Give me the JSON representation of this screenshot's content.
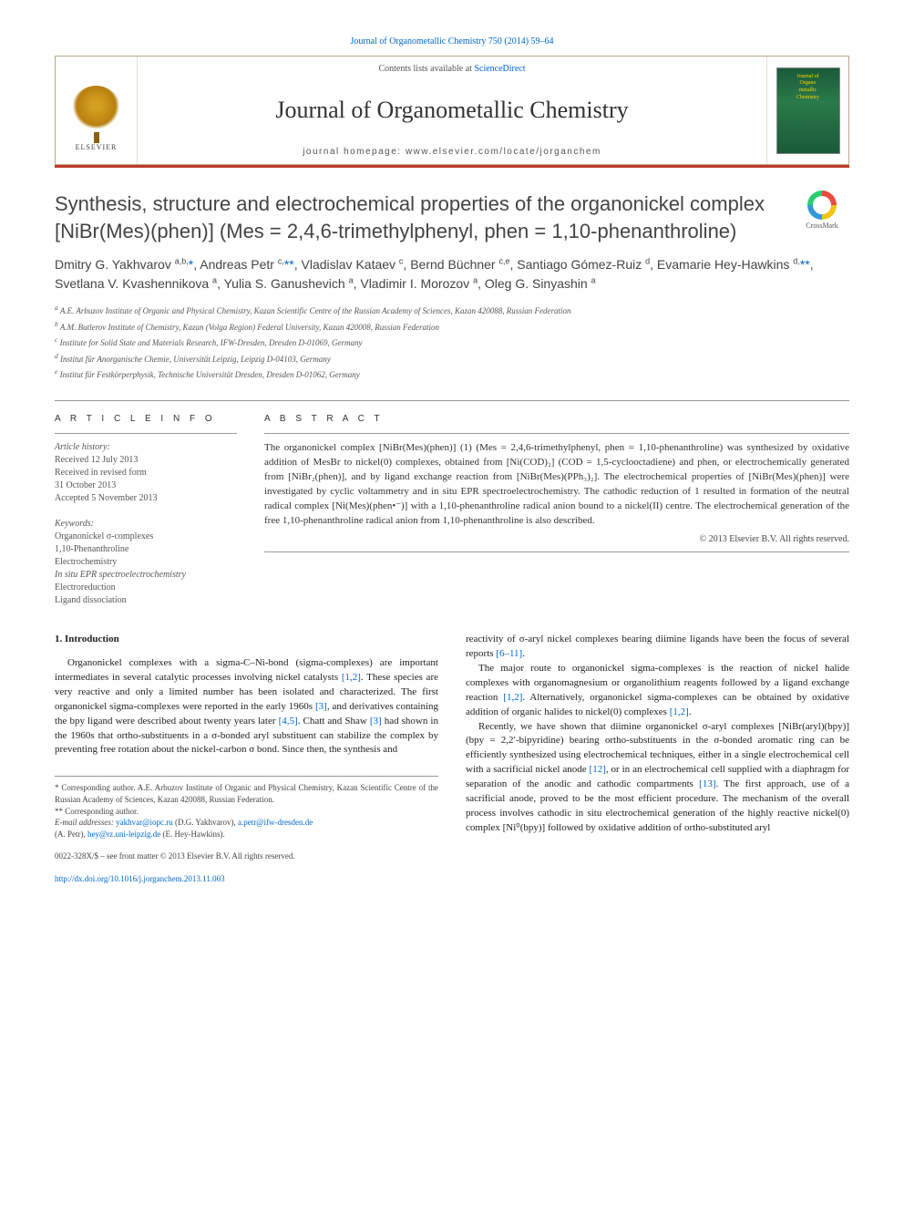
{
  "top_citation": "Journal of Organometallic Chemistry 750 (2014) 59–64",
  "header": {
    "contents_prefix": "Contents lists available at ",
    "contents_link": "ScienceDirect",
    "journal_title": "Journal of Organometallic Chemistry",
    "homepage_prefix": "journal homepage: ",
    "homepage_url": "www.elsevier.com/locate/jorganchem",
    "publisher_name": "ELSEVIER",
    "cover_line1": "Journal of",
    "cover_line2": "Organo",
    "cover_line3": "metallic",
    "cover_line4": "Chemistry"
  },
  "article": {
    "title": "Synthesis, structure and electrochemical properties of the organonickel complex [NiBr(Mes)(phen)] (Mes = 2,4,6-trimethylphenyl, phen = 1,10-phenanthroline)",
    "crossmark": "CrossMark",
    "authors_html": "Dmitry G. Yakhvarov <sup>a,b,</sup><span class='star'>*</span>, Andreas Petr <sup>c,</sup><span class='star'>**</span>, Vladislav Kataev <sup>c</sup>, Bernd Büchner <sup>c,e</sup>, Santiago Gómez-Ruiz <sup>d</sup>, Evamarie Hey-Hawkins <sup>d,</sup><span class='star'>**</span>, Svetlana V. Kvashennikova <sup>a</sup>, Yulia S. Ganushevich <sup>a</sup>, Vladimir I. Morozov <sup>a</sup>, Oleg G. Sinyashin <sup>a</sup>",
    "affiliations": [
      "a A.E. Arbuzov Institute of Organic and Physical Chemistry, Kazan Scientific Centre of the Russian Academy of Sciences, Kazan 420088, Russian Federation",
      "b A.M. Butlerov Institute of Chemistry, Kazan (Volga Region) Federal University, Kazan 420008, Russian Federation",
      "c Institute for Solid State and Materials Research, IFW-Dresden, Dresden D-01069, Germany",
      "d Institut für Anorganische Chemie, Universität Leipzig, Leipzig D-04103, Germany",
      "e Institut für Festkörperphysik, Technische Universität Dresden, Dresden D-01062, Germany"
    ]
  },
  "info": {
    "heading": "A R T I C L E   I N F O",
    "history_label": "Article history:",
    "history": [
      "Received 12 July 2013",
      "Received in revised form",
      "31 October 2013",
      "Accepted 5 November 2013"
    ],
    "keywords_label": "Keywords:",
    "keywords": [
      "Organonickel σ-complexes",
      "1,10-Phenanthroline",
      "Electrochemistry",
      "In situ EPR spectroelectrochemistry",
      "Electroreduction",
      "Ligand dissociation"
    ]
  },
  "abstract": {
    "heading": "A B S T R A C T",
    "text": "The organonickel complex [NiBr(Mes)(phen)] (1) (Mes = 2,4,6-trimethylphenyl, phen = 1,10-phenanthroline) was synthesized by oxidative addition of MesBr to nickel(0) complexes, obtained from [Ni(COD)₂] (COD = 1,5-cyclooctadiene) and phen, or electrochemically generated from [NiBr₂(phen)], and by ligand exchange reaction from [NiBr(Mes)(PPh₃)₂]. The electrochemical properties of [NiBr(Mes)(phen)] were investigated by cyclic voltammetry and in situ EPR spectroelectrochemistry. The cathodic reduction of 1 resulted in formation of the neutral radical complex [Ni(Mes)(phen•⁻)] with a 1,10-phenanthroline radical anion bound to a nickel(II) centre. The electrochemical generation of the free 1,10-phenanthroline radical anion from 1,10-phenanthroline is also described.",
    "copyright": "© 2013 Elsevier B.V. All rights reserved."
  },
  "body": {
    "intro_heading": "1. Introduction",
    "col1_p1": "Organonickel complexes with a sigma-C–Ni-bond (sigma-complexes) are important intermediates in several catalytic processes involving nickel catalysts [1,2]. These species are very reactive and only a limited number has been isolated and characterized. The first organonickel sigma-complexes were reported in the early 1960s [3], and derivatives containing the bpy ligand were described about twenty years later [4,5]. Chatt and Shaw [3] had shown in the 1960s that ortho-substituents in a σ-bonded aryl substituent can stabilize the complex by preventing free rotation about the nickel-carbon σ bond. Since then, the synthesis and",
    "col2_p1": "reactivity of σ-aryl nickel complexes bearing diimine ligands have been the focus of several reports [6–11].",
    "col2_p2": "The major route to organonickel sigma-complexes is the reaction of nickel halide complexes with organomagnesium or organolithium reagents followed by a ligand exchange reaction [1,2]. Alternatively, organonickel sigma-complexes can be obtained by oxidative addition of organic halides to nickel(0) complexes [1,2].",
    "col2_p3": "Recently, we have shown that diimine organonickel σ-aryl complexes [NiBr(aryl)(bpy)] (bpy = 2,2′-bipyridine) bearing ortho-substituents in the σ-bonded aromatic ring can be efficiently synthesized using electrochemical techniques, either in a single electrochemical cell with a sacrificial nickel anode [12], or in an electrochemical cell supplied with a diaphragm for separation of the anodic and cathodic compartments [13]. The first approach, use of a sacrificial anode, proved to be the most efficient procedure. The mechanism of the overall process involves cathodic in situ electrochemical generation of the highly reactive nickel(0) complex [Ni⁰(bpy)] followed by oxidative addition of ortho-substituted aryl"
  },
  "footnotes": {
    "corr1": "* Corresponding author. A.E. Arbuzov Institute of Organic and Physical Chemistry, Kazan Scientific Centre of the Russian Academy of Sciences, Kazan 420088, Russian Federation.",
    "corr2": "** Corresponding author.",
    "email_label": "E-mail addresses: ",
    "email1": "yakhvar@iopc.ru",
    "email1_name": " (D.G. Yakhvarov), ",
    "email2": "a.petr@ifw-dresden.de",
    "email2_name": " (A. Petr), ",
    "email3": "hey@rz.uni-leipzig.de",
    "email3_name": " (E. Hey-Hawkins)."
  },
  "footer": {
    "issn": "0022-328X/$ – see front matter © 2013 Elsevier B.V. All rights reserved.",
    "doi": "http://dx.doi.org/10.1016/j.jorganchem.2013.11.003"
  },
  "colors": {
    "link": "#0066cc",
    "border": "#b8a88a",
    "redbar": "#c0392b",
    "text": "#333333",
    "muted": "#555555"
  }
}
